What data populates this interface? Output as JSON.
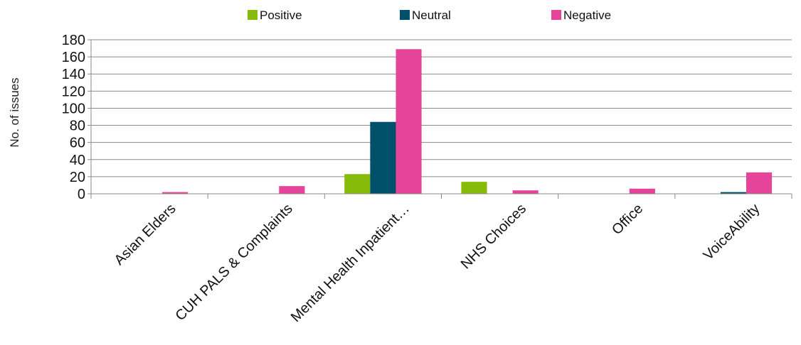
{
  "chart_data": {
    "type": "bar",
    "title": "",
    "xlabel": "",
    "ylabel": "No. of issues",
    "ylim": [
      0,
      180
    ],
    "yticks": [
      "0",
      "20",
      "40",
      "60",
      "80",
      "100",
      "120",
      "140",
      "160",
      "180"
    ],
    "grid": true,
    "legend_position": "top-center",
    "categories": [
      "Asian Elders",
      "CUH PALS & Complaints",
      "Mental Health Inpatient…",
      "NHS Choices",
      "Office",
      "VoiceAbility"
    ],
    "series": [
      {
        "name": "Positive",
        "color": "#86BC09",
        "values": [
          0,
          0,
          23,
          14,
          0,
          0
        ]
      },
      {
        "name": "Neutral",
        "color": "#004F6B",
        "values": [
          0,
          0,
          84,
          0,
          0,
          2
        ]
      },
      {
        "name": "Negative",
        "color": "#E6439A",
        "values": [
          2,
          9,
          169,
          4,
          6,
          25
        ]
      }
    ]
  }
}
